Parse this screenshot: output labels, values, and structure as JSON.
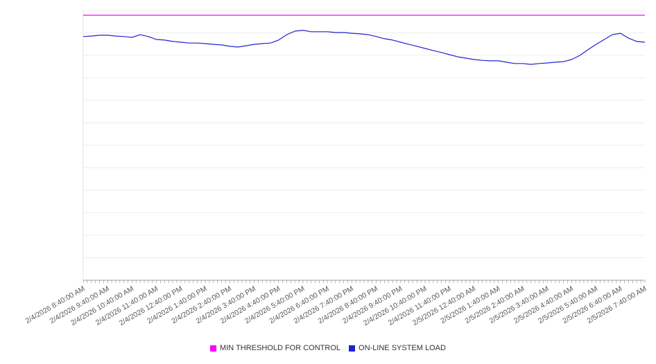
{
  "chart": {
    "background": "#ffffff",
    "grid_color": "#ededed",
    "axis_color": "#9a9a9a",
    "tick_label_color": "#595959"
  },
  "chart_data": {
    "type": "line",
    "title": "",
    "xlabel": "",
    "ylabel": "",
    "y_axis_labels": "none",
    "ylim": [
      0,
      100
    ],
    "grid": "horizontal",
    "grid_divisions": 12,
    "legend_position": "bottom",
    "x": {
      "tick_interval": "1 hour",
      "points_per_hour": 3,
      "minor_tick_intervals": 138,
      "labels": [
        "2/4/2026 8:40:00 AM",
        "2/4/2026 9:40:00 AM",
        "2/4/2026 10:40:00 AM",
        "2/4/2026 11:40:00 AM",
        "2/4/2026 12:40:00 PM",
        "2/4/2026 1:40:00 PM",
        "2/4/2026 2:40:00 PM",
        "2/4/2026 3:40:00 PM",
        "2/4/2026 4:40:00 PM",
        "2/4/2026 5:40:00 PM",
        "2/4/2026 6:40:00 PM",
        "2/4/2026 7:40:00 PM",
        "2/4/2026 8:40:00 PM",
        "2/4/2026 9:40:00 PM",
        "2/4/2026 10:40:00 PM",
        "2/4/2026 11:40:00 PM",
        "2/5/2026 12:40:00 AM",
        "2/5/2026 1:40:00 AM",
        "2/5/2026 2:40:00 AM",
        "2/5/2026 3:40:00 AM",
        "2/5/2026 4:40:00 AM",
        "2/5/2026 5:40:00 AM",
        "2/5/2026 6:40:00 AM",
        "2/5/2026 7:40:00 AM"
      ]
    },
    "series": [
      {
        "name": "MIN THRESHOLD FOR CONTROL",
        "color": "#ff00ff",
        "style": "constant",
        "value": 98.2
      },
      {
        "name": "ON-LINE SYSTEM LOAD",
        "color": "#2222cc",
        "style": "line",
        "values": [
          90.3,
          90.5,
          90.8,
          90.8,
          90.5,
          90.3,
          90.0,
          91.0,
          90.3,
          89.2,
          89.0,
          88.5,
          88.2,
          87.9,
          87.9,
          87.7,
          87.4,
          87.2,
          86.7,
          86.4,
          86.9,
          87.4,
          87.7,
          87.9,
          89.0,
          91.0,
          92.3,
          92.6,
          92.1,
          92.1,
          92.1,
          91.8,
          91.8,
          91.5,
          91.3,
          91.0,
          90.3,
          89.5,
          89.0,
          88.2,
          87.4,
          86.7,
          85.9,
          85.1,
          84.4,
          83.6,
          82.8,
          82.3,
          81.8,
          81.5,
          81.3,
          81.3,
          80.8,
          80.3,
          80.3,
          80.0,
          80.3,
          80.5,
          80.8,
          81.0,
          81.8,
          83.3,
          85.4,
          87.4,
          89.2,
          91.0,
          91.5,
          89.7,
          88.5,
          88.2
        ]
      }
    ]
  }
}
